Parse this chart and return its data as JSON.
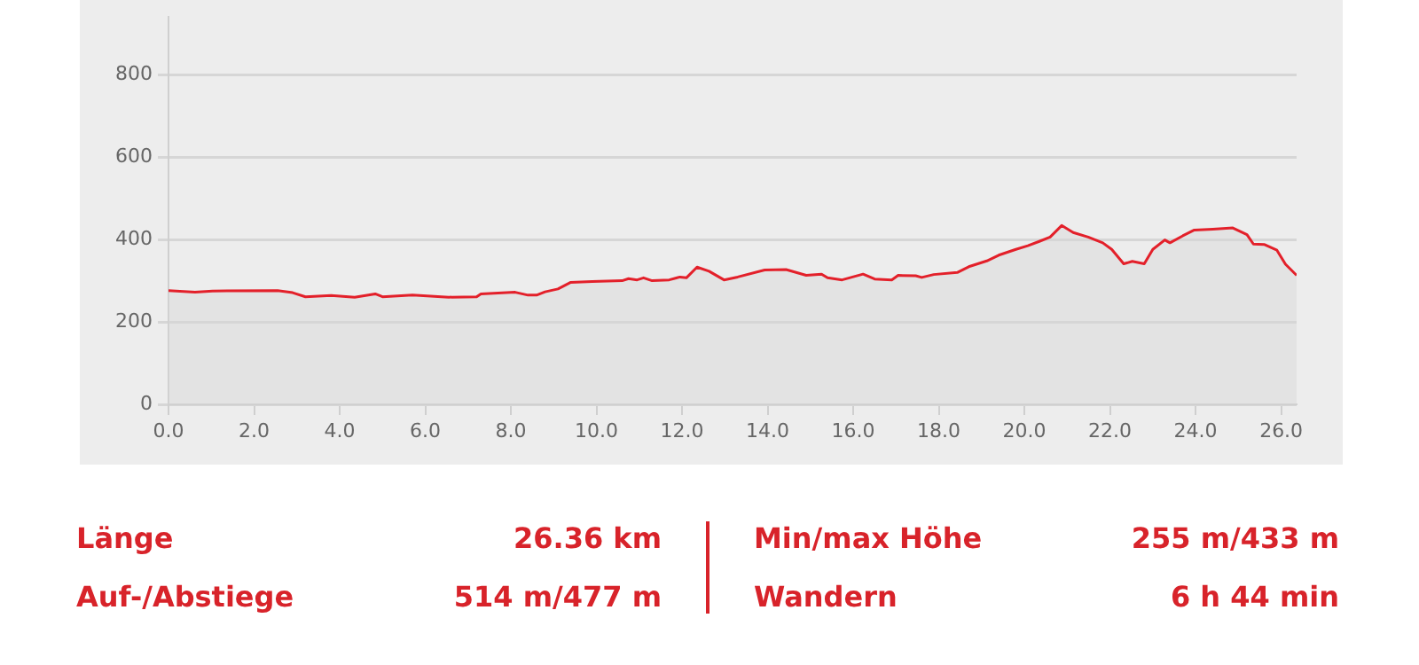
{
  "chart_data": {
    "type": "area",
    "xlim": [
      0,
      26.36
    ],
    "ylim": [
      0,
      940
    ],
    "xticks": [
      {
        "value": 0,
        "label": "0.0"
      },
      {
        "value": 2,
        "label": "2.0"
      },
      {
        "value": 4,
        "label": "4.0"
      },
      {
        "value": 6,
        "label": "6.0"
      },
      {
        "value": 8,
        "label": "8.0"
      },
      {
        "value": 10,
        "label": "10.0"
      },
      {
        "value": 12,
        "label": "12.0"
      },
      {
        "value": 14,
        "label": "14.0"
      },
      {
        "value": 16,
        "label": "16.0"
      },
      {
        "value": 18,
        "label": "18.0"
      },
      {
        "value": 20,
        "label": "20.0"
      },
      {
        "value": 22,
        "label": "22.0"
      },
      {
        "value": 24,
        "label": "24.0"
      },
      {
        "value": 26,
        "label": "26.0"
      }
    ],
    "yticks": [
      0,
      200,
      400,
      600,
      800
    ],
    "grid": "y",
    "legend": false,
    "marker": "none",
    "line_style": "solid",
    "series": [
      {
        "color": "#e3202a",
        "x": [
          0,
          0.62,
          1.03,
          2.55,
          2.9,
          3.2,
          3.8,
          4.35,
          4.83,
          5.0,
          5.7,
          6.55,
          7.2,
          7.3,
          8.1,
          8.4,
          8.6,
          8.8,
          9.1,
          9.4,
          9.9,
          10.6,
          10.75,
          10.95,
          11.1,
          11.3,
          11.7,
          11.95,
          12.1,
          12.35,
          12.63,
          12.98,
          13.3,
          13.93,
          14.43,
          14.9,
          15.26,
          15.4,
          15.74,
          16.23,
          16.5,
          16.9,
          17.05,
          17.46,
          17.6,
          17.88,
          18.43,
          18.7,
          19.12,
          19.4,
          19.8,
          20.08,
          20.36,
          20.6,
          20.87,
          21.14,
          21.49,
          21.83,
          22.04,
          22.32,
          22.52,
          22.8,
          23.0,
          23.28,
          23.4,
          23.7,
          23.97,
          24.4,
          24.87,
          25.2,
          25.35,
          25.6,
          25.9,
          26.1,
          26.36
        ],
        "values": [
          276,
          272,
          275,
          276,
          271,
          261,
          264,
          260,
          268,
          261,
          265,
          260,
          261,
          268,
          272,
          265,
          265,
          273,
          280,
          296,
          298,
          300,
          305,
          302,
          307,
          300,
          302,
          309,
          307,
          333,
          323,
          302,
          309,
          326,
          327,
          313,
          316,
          307,
          302,
          316,
          304,
          302,
          313,
          312,
          308,
          315,
          320,
          334,
          348,
          362,
          376,
          385,
          396,
          406,
          434,
          417,
          406,
          392,
          376,
          341,
          347,
          341,
          376,
          399,
          392,
          409,
          423,
          425,
          428,
          412,
          389,
          388,
          374,
          340,
          313
        ]
      }
    ],
    "annotations": [
      "Länge",
      "26.36 km",
      "Min/max Höhe",
      "255 m/433 m",
      "Auf-/Abstiege",
      "514 m/477 m",
      "Wandern",
      "6 h 44 min"
    ]
  }
}
